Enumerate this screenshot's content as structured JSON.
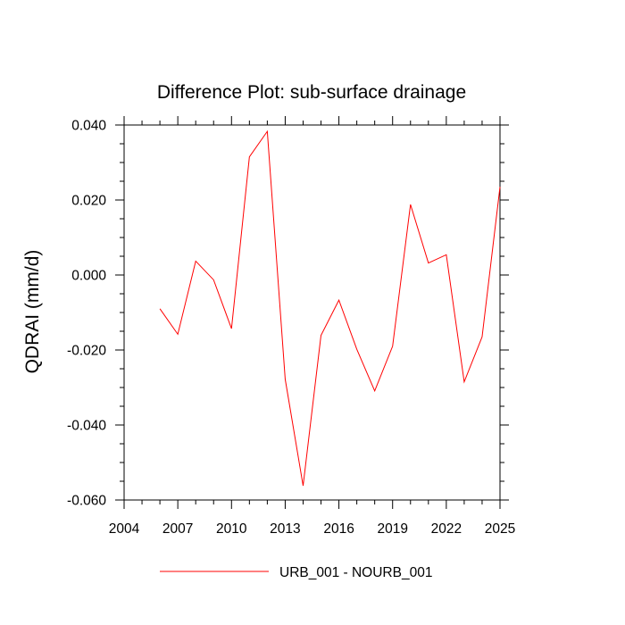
{
  "chart_data": {
    "type": "line",
    "title": "Difference Plot: sub-surface drainage",
    "ylabel": "QDRAI  (mm/d)",
    "xlabel": "",
    "xlim": [
      2004,
      2025
    ],
    "ylim": [
      -0.06,
      0.04
    ],
    "x_ticks": [
      2004,
      2007,
      2010,
      2013,
      2016,
      2019,
      2022,
      2025
    ],
    "x_tick_labels": [
      "2004",
      "2007",
      "2010",
      "2013",
      "2016",
      "2019",
      "2022",
      "2025"
    ],
    "y_ticks": [
      -0.06,
      -0.04,
      -0.02,
      0.0,
      0.02,
      0.04
    ],
    "y_tick_labels": [
      "-0.060",
      "-0.040",
      "-0.020",
      "0.000",
      "0.020",
      "0.040"
    ],
    "grid": false,
    "legend_position": "bottom",
    "series": [
      {
        "name": "URB_001 - NOURB_001",
        "color": "#ff0000",
        "x": [
          2006,
          2007,
          2008,
          2009,
          2010,
          2011,
          2012,
          2013,
          2014,
          2015,
          2016,
          2017,
          2018,
          2019,
          2020,
          2021,
          2022,
          2023,
          2024,
          2025
        ],
        "y": [
          -0.009,
          -0.0158,
          0.0037,
          -0.0013,
          -0.0143,
          0.0315,
          0.0383,
          -0.0278,
          -0.0562,
          -0.0161,
          -0.0067,
          -0.0198,
          -0.0309,
          -0.019,
          0.0188,
          0.0032,
          0.0054,
          -0.0285,
          -0.0165,
          0.0235
        ]
      }
    ]
  }
}
